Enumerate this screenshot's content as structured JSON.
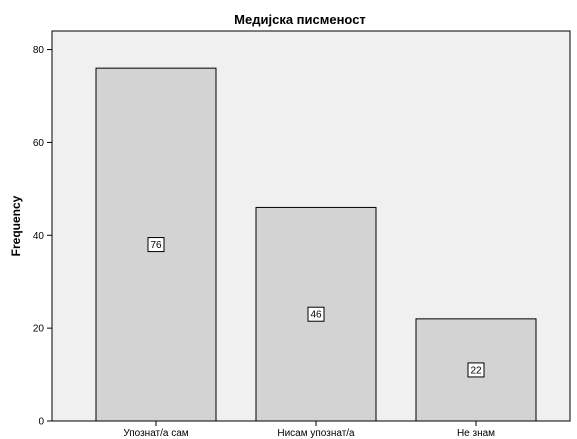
{
  "chart_data": {
    "type": "bar",
    "title": "Медијска писменост",
    "ylabel": "Frequency",
    "xlabel": "",
    "categories": [
      "Упознат/а сам",
      "Нисам упознат/а",
      "Не знам"
    ],
    "values": [
      76,
      46,
      22
    ],
    "data_labels": [
      "76",
      "46",
      "22"
    ],
    "ylim": [
      0,
      84
    ],
    "yticks": [
      0,
      20,
      40,
      60,
      80
    ],
    "ytick_labels": [
      "0",
      "20",
      "40",
      "60",
      "80"
    ],
    "grid": false,
    "legend": "none",
    "colors": {
      "plot_background": "#f0f0f0",
      "bar_fill": "#d3d3d3",
      "bar_stroke": "#000000"
    }
  }
}
